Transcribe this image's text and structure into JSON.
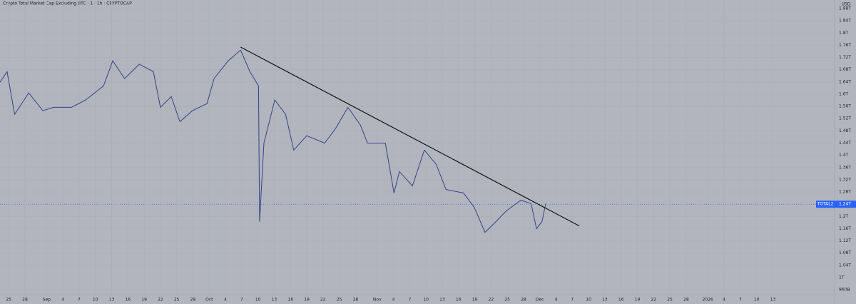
{
  "chart_data": {
    "type": "line",
    "title": "Crypto Total Market Cap Excluding BTC · 1 · 1h · CRYPTOCAP",
    "currency": "USD",
    "x": [
      -1.6,
      -0.3,
      1.1,
      3.7,
      6.3,
      8.3,
      11.6,
      14.2,
      17.5,
      19.2,
      21.4,
      24.1,
      26.7,
      28.0,
      30.0,
      31.6,
      33.9,
      36.6,
      37.9,
      40.5,
      42.8,
      44.5,
      46.1,
      46.3,
      47.1,
      49.1,
      51.1,
      52.6,
      55.0,
      58.3,
      60.3,
      62.6,
      64.9,
      66.2,
      69.5,
      71.1,
      72.1,
      74.5,
      76.7,
      78.9,
      80.7,
      83.9,
      85.9,
      87.9,
      89.9,
      91.8,
      94.5,
      96.4,
      97.4,
      98.4,
      99.1
    ],
    "series": [
      {
        "name": "TOTAL2",
        "color": "#34428a",
        "values": [
          1.639,
          1.674,
          1.534,
          1.604,
          1.546,
          1.557,
          1.557,
          1.581,
          1.627,
          1.709,
          1.651,
          1.698,
          1.674,
          1.557,
          1.592,
          1.51,
          1.546,
          1.569,
          1.651,
          1.709,
          1.744,
          1.674,
          1.627,
          1.183,
          1.44,
          1.581,
          1.534,
          1.417,
          1.464,
          1.44,
          1.487,
          1.557,
          1.499,
          1.44,
          1.44,
          1.277,
          1.347,
          1.3,
          1.417,
          1.37,
          1.288,
          1.277,
          1.23,
          1.148,
          1.183,
          1.218,
          1.253,
          1.242,
          1.16,
          1.183,
          1.242
        ]
      }
    ],
    "trendline": {
      "x": [
        42.8,
        105.3
      ],
      "values": [
        1.754,
        1.169
      ],
      "color": "#111111"
    },
    "last_price": {
      "value": 1.24,
      "label": "1.24T"
    },
    "xlim": [
      -1.6,
      152.4
    ],
    "ylim": [
      0.944,
      1.908
    ],
    "xticks": [
      {
        "value": 0,
        "label": "25"
      },
      {
        "value": 3,
        "label": "28"
      },
      {
        "value": 7,
        "label": "Sep"
      },
      {
        "value": 10,
        "label": "4"
      },
      {
        "value": 13,
        "label": "7"
      },
      {
        "value": 16,
        "label": "10"
      },
      {
        "value": 19,
        "label": "13"
      },
      {
        "value": 22,
        "label": "16"
      },
      {
        "value": 25,
        "label": "19"
      },
      {
        "value": 28,
        "label": "22"
      },
      {
        "value": 31,
        "label": "25"
      },
      {
        "value": 34,
        "label": "28"
      },
      {
        "value": 37,
        "label": "Oct"
      },
      {
        "value": 40,
        "label": "4"
      },
      {
        "value": 43,
        "label": "7"
      },
      {
        "value": 46,
        "label": "10"
      },
      {
        "value": 49,
        "label": "13"
      },
      {
        "value": 52,
        "label": "16"
      },
      {
        "value": 55,
        "label": "19"
      },
      {
        "value": 58,
        "label": "22"
      },
      {
        "value": 61,
        "label": "25"
      },
      {
        "value": 64,
        "label": "28"
      },
      {
        "value": 68,
        "label": "Nov"
      },
      {
        "value": 71,
        "label": "4"
      },
      {
        "value": 74,
        "label": "7"
      },
      {
        "value": 77,
        "label": "10"
      },
      {
        "value": 80,
        "label": "13"
      },
      {
        "value": 83,
        "label": "16"
      },
      {
        "value": 86,
        "label": "19"
      },
      {
        "value": 89,
        "label": "22"
      },
      {
        "value": 92,
        "label": "25"
      },
      {
        "value": 95,
        "label": "28"
      },
      {
        "value": 98,
        "label": "Dec"
      },
      {
        "value": 101,
        "label": "4"
      },
      {
        "value": 104,
        "label": "7"
      },
      {
        "value": 107,
        "label": "10"
      },
      {
        "value": 110,
        "label": "13"
      },
      {
        "value": 113,
        "label": "16"
      },
      {
        "value": 116,
        "label": "19"
      },
      {
        "value": 119,
        "label": "22"
      },
      {
        "value": 122,
        "label": "25"
      },
      {
        "value": 125,
        "label": "28"
      },
      {
        "value": 129,
        "label": "2026"
      },
      {
        "value": 132,
        "label": "4"
      },
      {
        "value": 135,
        "label": "7"
      },
      {
        "value": 138,
        "label": "10"
      },
      {
        "value": 141,
        "label": "13"
      }
    ],
    "yticks": [
      {
        "value": 0.96,
        "label": "960B"
      },
      {
        "value": 1.0,
        "label": "1T"
      },
      {
        "value": 1.04,
        "label": "1.04T"
      },
      {
        "value": 1.08,
        "label": "1.08T"
      },
      {
        "value": 1.12,
        "label": "1.12T"
      },
      {
        "value": 1.16,
        "label": "1.16T"
      },
      {
        "value": 1.2,
        "label": "1.2T"
      },
      {
        "value": 1.28,
        "label": "1.28T"
      },
      {
        "value": 1.32,
        "label": "1.32T"
      },
      {
        "value": 1.36,
        "label": "1.36T"
      },
      {
        "value": 1.4,
        "label": "1.4T"
      },
      {
        "value": 1.44,
        "label": "1.44T"
      },
      {
        "value": 1.48,
        "label": "1.48T"
      },
      {
        "value": 1.52,
        "label": "1.52T"
      },
      {
        "value": 1.56,
        "label": "1.56T"
      },
      {
        "value": 1.6,
        "label": "1.6T"
      },
      {
        "value": 1.64,
        "label": "1.64T"
      },
      {
        "value": 1.68,
        "label": "1.68T"
      },
      {
        "value": 1.72,
        "label": "1.72T"
      },
      {
        "value": 1.76,
        "label": "1.76T"
      },
      {
        "value": 1.8,
        "label": "1.8T"
      },
      {
        "value": 1.84,
        "label": "1.84T"
      },
      {
        "value": 1.88,
        "label": "1.88T"
      }
    ]
  }
}
